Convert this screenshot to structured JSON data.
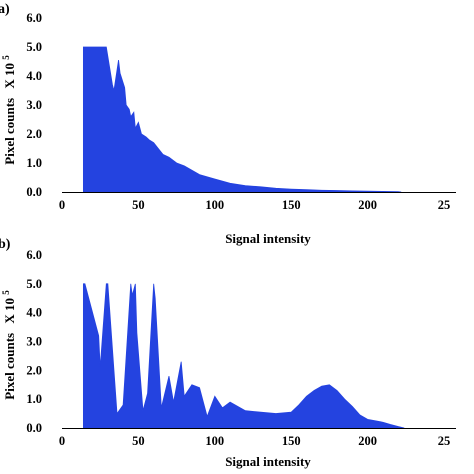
{
  "chart_data": [
    {
      "type": "area",
      "panel_label": "a)",
      "title": "",
      "xlabel": "Signal intensity",
      "ylabel": "Pixel counts",
      "ylabel_multiplier": "X 10",
      "ylabel_exponent": "5",
      "xlim": [
        0,
        250
      ],
      "ylim": [
        0,
        6.0
      ],
      "x_ticks": [
        "0",
        "50",
        "100",
        "150",
        "200",
        "25"
      ],
      "y_ticks": [
        "0.0",
        "1.0",
        "2.0",
        "3.0",
        "4.0",
        "5.0",
        "6.0"
      ],
      "series": [
        {
          "color": "#2443e0",
          "x": [
            14,
            15,
            22,
            23,
            28,
            29,
            33,
            34,
            37,
            38,
            41,
            42,
            44,
            45,
            47,
            48,
            50,
            52,
            55,
            57,
            60,
            63,
            66,
            70,
            75,
            80,
            90,
            100,
            110,
            120,
            130,
            140,
            150,
            160,
            170,
            180,
            190,
            200,
            210,
            220,
            222
          ],
          "y": [
            5.0,
            5.0,
            5.0,
            5.0,
            5.0,
            5.0,
            3.7,
            3.5,
            4.55,
            4.1,
            3.6,
            3.0,
            2.85,
            2.6,
            2.75,
            2.2,
            2.4,
            2.0,
            1.9,
            1.8,
            1.7,
            1.5,
            1.3,
            1.2,
            1.0,
            0.9,
            0.6,
            0.45,
            0.3,
            0.22,
            0.18,
            0.13,
            0.1,
            0.08,
            0.06,
            0.05,
            0.04,
            0.03,
            0.02,
            0.01,
            0.0
          ]
        }
      ]
    },
    {
      "type": "area",
      "panel_label": "b)",
      "title": "",
      "xlabel": "Signal intensity",
      "ylabel": "Pixel counts",
      "ylabel_multiplier": "X 10",
      "ylabel_exponent": "5",
      "xlim": [
        0,
        250
      ],
      "ylim": [
        0,
        6.0
      ],
      "x_ticks": [
        "0",
        "50",
        "100",
        "150",
        "200",
        "25"
      ],
      "y_ticks": [
        "0.0",
        "1.0",
        "2.0",
        "3.0",
        "4.0",
        "5.0",
        "6.0"
      ],
      "series": [
        {
          "color": "#2443e0",
          "x": [
            14,
            15,
            24,
            25,
            29,
            30,
            36,
            40,
            45,
            46,
            48,
            49,
            53,
            56,
            60,
            61,
            65,
            70,
            73,
            78,
            80,
            85,
            90,
            95,
            100,
            105,
            110,
            120,
            130,
            140,
            150,
            155,
            160,
            165,
            170,
            175,
            180,
            185,
            190,
            195,
            200,
            205,
            210,
            215,
            220,
            224
          ],
          "y": [
            5.0,
            5.0,
            3.2,
            2.1,
            5.0,
            5.0,
            0.5,
            0.8,
            5.0,
            4.6,
            5.0,
            3.3,
            0.6,
            1.2,
            5.0,
            4.5,
            0.7,
            1.8,
            0.9,
            2.3,
            1.1,
            1.5,
            1.4,
            0.4,
            1.1,
            0.7,
            0.9,
            0.6,
            0.55,
            0.5,
            0.55,
            0.8,
            1.1,
            1.3,
            1.45,
            1.5,
            1.3,
            1.0,
            0.75,
            0.45,
            0.3,
            0.25,
            0.2,
            0.12,
            0.05,
            0.0
          ]
        }
      ]
    }
  ]
}
